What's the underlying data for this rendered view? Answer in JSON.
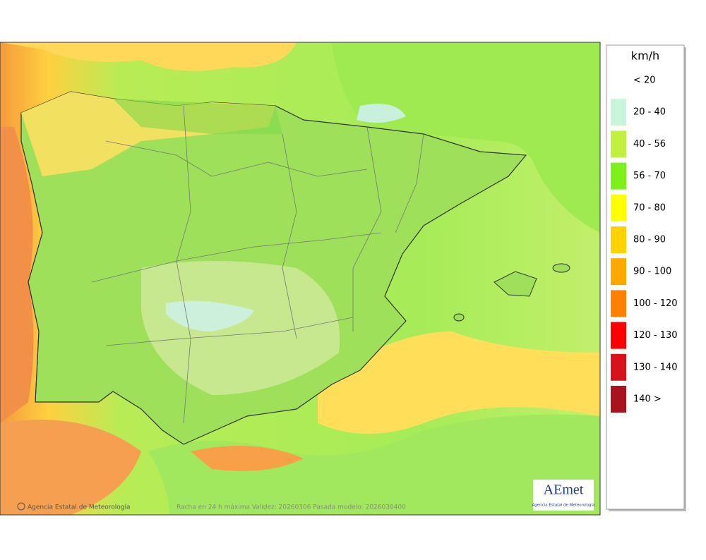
{
  "map": {
    "caption": "Racha en 24 h máxima  Validez: 20260306 Pasada modelo: 2026030400",
    "credit": "Agencia Estatal de Meteorología",
    "logo": {
      "name": "AEmet",
      "subtitle": "Agencia Estatal de Meteorología"
    }
  },
  "legend": {
    "title": "km/h",
    "items": [
      {
        "label": "< 20",
        "color": "#ffffff"
      },
      {
        "label": "20 - 40",
        "color": "#c8f5dc"
      },
      {
        "label": "40 - 56",
        "color": "#c0f040"
      },
      {
        "label": "56 - 70",
        "color": "#7ef01c"
      },
      {
        "label": "70 - 80",
        "color": "#ffff00"
      },
      {
        "label": "80 - 90",
        "color": "#ffd200"
      },
      {
        "label": "90 - 100",
        "color": "#ffa800"
      },
      {
        "label": "100 - 120",
        "color": "#ff8000"
      },
      {
        "label": "120 - 130",
        "color": "#ff0000"
      },
      {
        "label": "130 - 140",
        "color": "#d8121a"
      },
      {
        "label": "140 >",
        "color": "#a8141e"
      }
    ]
  }
}
